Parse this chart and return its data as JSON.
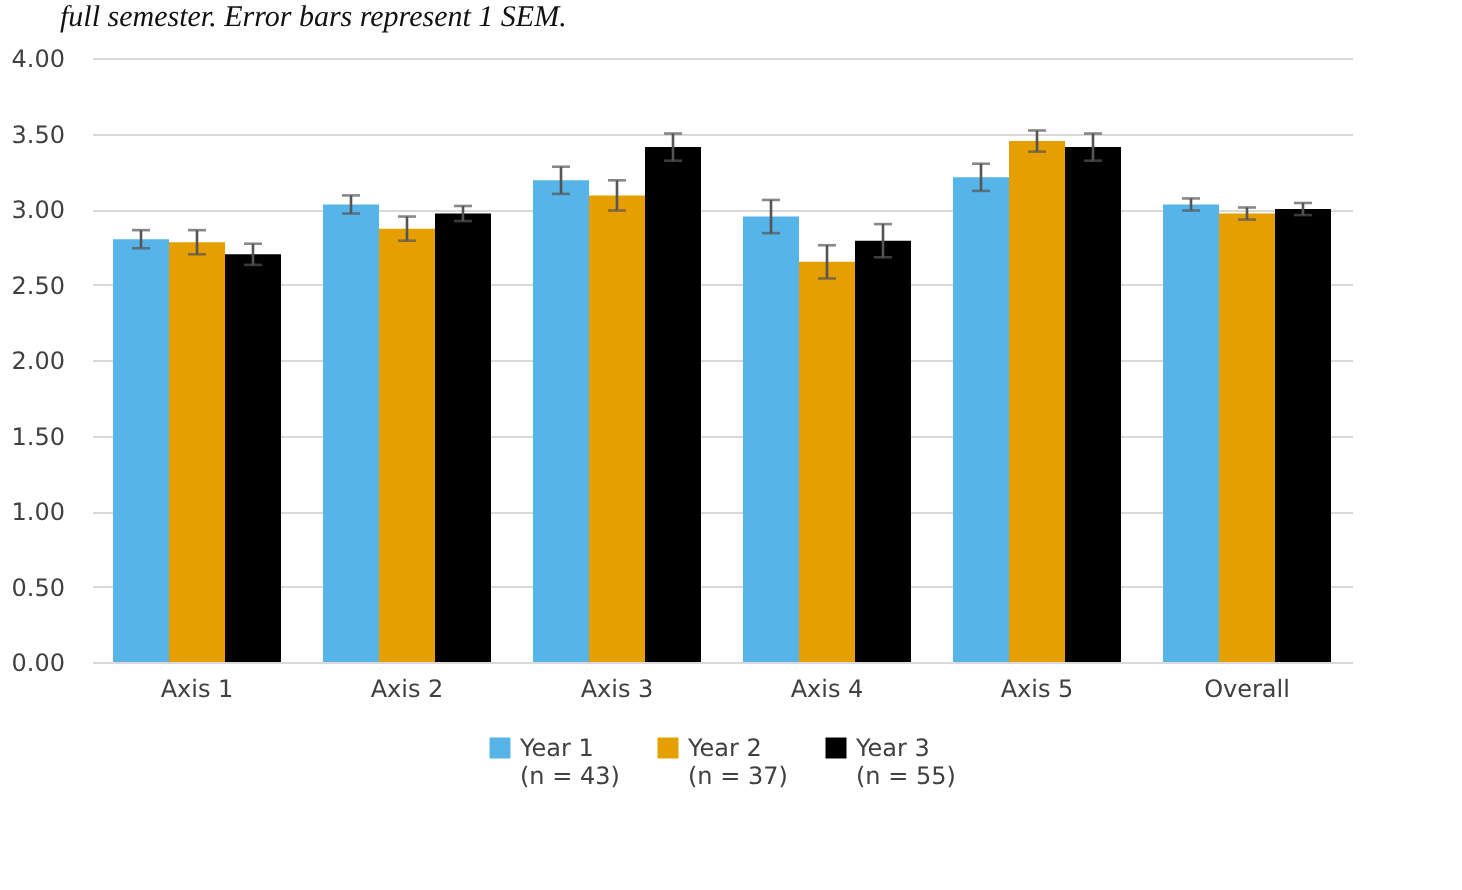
{
  "chart_data": {
    "type": "bar",
    "annotations": [
      "full semester. Error bars represent 1 SEM."
    ],
    "categories": [
      "Axis 1",
      "Axis 2",
      "Axis 3",
      "Axis 4",
      "Axis 5",
      "Overall"
    ],
    "series": [
      {
        "name": "Year 1\n(n = 43)",
        "color": "#56b4e9",
        "values": [
          2.8,
          3.03,
          3.19,
          2.95,
          3.21,
          3.03
        ],
        "errors": [
          0.06,
          0.06,
          0.09,
          0.11,
          0.09,
          0.04
        ]
      },
      {
        "name": "Year 2\n(n = 37)",
        "color": "#e69f00",
        "values": [
          2.78,
          2.87,
          3.09,
          2.65,
          3.45,
          2.97
        ],
        "errors": [
          0.08,
          0.08,
          0.1,
          0.11,
          0.07,
          0.04
        ]
      },
      {
        "name": "Year 3\n(n = 55)",
        "color": "#000000",
        "values": [
          2.7,
          2.97,
          3.41,
          2.79,
          3.41,
          3.0
        ],
        "errors": [
          0.07,
          0.05,
          0.09,
          0.11,
          0.09,
          0.04
        ]
      }
    ],
    "ylim": [
      0,
      4
    ],
    "yticks": [
      {
        "value": 0,
        "label": "0.00"
      },
      {
        "value": 0.5,
        "label": "0.50"
      },
      {
        "value": 1,
        "label": "1.00"
      },
      {
        "value": 1.5,
        "label": "1.50"
      },
      {
        "value": 2,
        "label": "2.00"
      },
      {
        "value": 2.5,
        "label": "2.50"
      },
      {
        "value": 3,
        "label": "3.00"
      },
      {
        "value": 3.5,
        "label": "3.50"
      },
      {
        "value": 4,
        "label": "4.00"
      }
    ],
    "grid": "y",
    "legend": "bottom"
  }
}
